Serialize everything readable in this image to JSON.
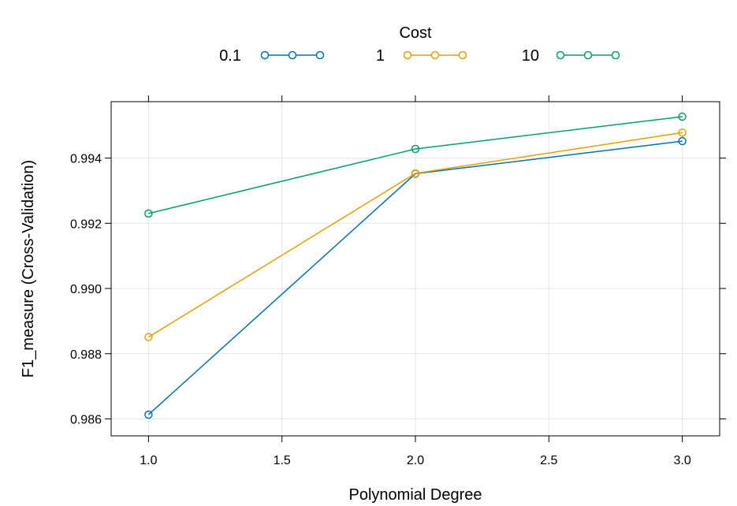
{
  "chart_data": {
    "type": "line",
    "xlabel": "Polynomial Degree",
    "ylabel": "F1_measure (Cross-Validation)",
    "legend_title": "Cost",
    "legend_placement": "top",
    "grid": true,
    "x": [
      1.0,
      2.0,
      3.0
    ],
    "xlim": [
      0.86,
      3.14
    ],
    "ylim": [
      0.98548,
      0.99573
    ],
    "x_ticks": [
      1.0,
      1.5,
      2.0,
      2.5,
      3.0
    ],
    "x_tick_labels": [
      "1.0",
      "1.5",
      "2.0",
      "2.5",
      "3.0"
    ],
    "y_ticks": [
      0.986,
      0.988,
      0.99,
      0.992,
      0.994
    ],
    "y_tick_labels": [
      "0.986",
      "0.988",
      "0.990",
      "0.992",
      "0.994"
    ],
    "series": [
      {
        "name": "0.1",
        "color": "#0072B2",
        "values": [
          0.98613,
          0.99352,
          0.99452
        ]
      },
      {
        "name": "1",
        "color": "#E69F00",
        "values": [
          0.98851,
          0.99353,
          0.99478
        ]
      },
      {
        "name": "10",
        "color": "#009E73",
        "values": [
          0.9923,
          0.99428,
          0.99527
        ]
      }
    ]
  }
}
